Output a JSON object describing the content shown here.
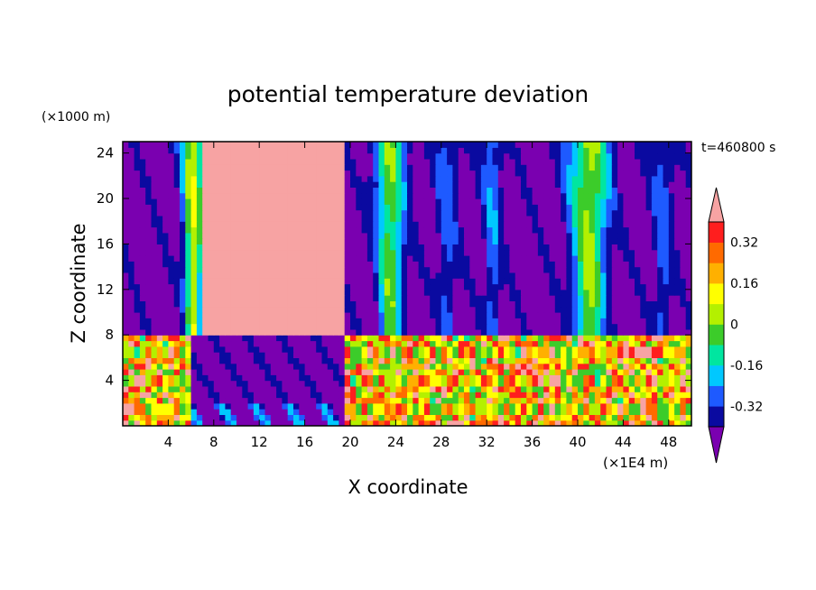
{
  "chart_data": {
    "type": "heatmap",
    "title": "potential temperature deviation",
    "xlabel": "X coordinate",
    "ylabel": "Z coordinate",
    "x_unit": "(×1E4 m)",
    "y_unit": "(×1000 m)",
    "time_label": "t=460800 s",
    "xlim": [
      0,
      50
    ],
    "ylim": [
      0,
      25
    ],
    "x_ticks": [
      4,
      8,
      12,
      16,
      20,
      24,
      28,
      32,
      36,
      40,
      44,
      48
    ],
    "y_ticks": [
      4,
      8,
      12,
      16,
      20,
      24
    ],
    "x_tick_labels": [
      "4",
      "8",
      "12",
      "16",
      "20",
      "24",
      "28",
      "32",
      "36",
      "40",
      "44",
      "48"
    ],
    "y_tick_labels": [
      "4",
      "8",
      "12",
      "16",
      "20",
      "24"
    ],
    "colorbar": {
      "levels": [
        -0.4,
        -0.32,
        -0.24,
        -0.16,
        -0.08,
        0,
        0.08,
        0.16,
        0.24,
        0.32,
        0.4
      ],
      "tick_values": [
        0.32,
        0.16,
        0,
        -0.16,
        -0.32
      ],
      "tick_labels": [
        "0.32",
        "0.16",
        "0",
        "-0.16",
        "-0.32"
      ],
      "colors": [
        "#7a00b0",
        "#0a0aa0",
        "#1e5aff",
        "#00c8ff",
        "#00e6a0",
        "#3ccc2a",
        "#b4f000",
        "#ffff00",
        "#ffb000",
        "#ff6a00",
        "#ff1e1e",
        "#f7a3a3"
      ]
    },
    "regions": {
      "upper_layer_z_range": [
        8,
        25
      ],
      "lower_layer_z_range": [
        0,
        8
      ],
      "upper_background_value": -0.44,
      "lower_background_value": 0.44,
      "warm_block_x_range": [
        7,
        19.5
      ],
      "cold_block_lower_x_range": [
        6,
        19.5
      ],
      "upper_plumes": [
        {
          "x": 6.2,
          "amp": 0.5,
          "width": 0.9
        },
        {
          "x": 23.5,
          "amp": 0.42,
          "width": 1.2
        },
        {
          "x": 28.5,
          "amp": 0.16,
          "width": 0.9
        },
        {
          "x": 32.5,
          "amp": 0.18,
          "width": 0.8
        },
        {
          "x": 41,
          "amp": 0.46,
          "width": 1.6
        },
        {
          "x": 47.5,
          "amp": 0.16,
          "width": 0.9
        }
      ]
    }
  }
}
